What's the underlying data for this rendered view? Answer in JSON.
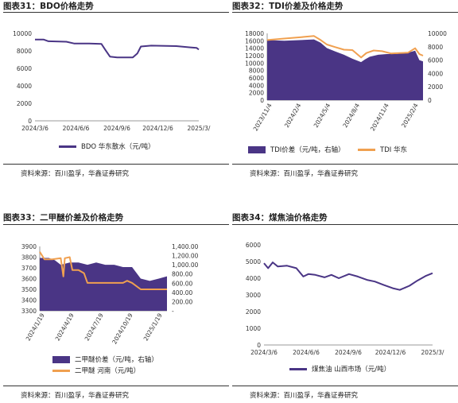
{
  "panels": [
    {
      "title": "图表31：BDO价格走势",
      "source": "资料来源：百川盈孚，华鑫证券研究",
      "chart_data": {
        "type": "line",
        "title": "",
        "xlabel": "",
        "ylabel": "",
        "ylim": [
          0,
          10000
        ],
        "y_ticks": [
          "0",
          "2000",
          "4000",
          "6000",
          "8000",
          "10000"
        ],
        "x_range": [
          "2024-03-06",
          "2025-03-06"
        ],
        "x_tick_labels": [
          "2024/3/6",
          "2024/6/6",
          "2024/9/6",
          "2024/12/6",
          "2025/3/"
        ],
        "series": [
          {
            "name": "BDO 华东散水（元/吨）",
            "color": "#4a3585",
            "points": [
              [
                "2024-03-06",
                9300
              ],
              [
                "2024-03-25",
                9300
              ],
              [
                "2024-04-05",
                9100
              ],
              [
                "2024-05-15",
                9050
              ],
              [
                "2024-06-01",
                8850
              ],
              [
                "2024-07-05",
                8850
              ],
              [
                "2024-08-01",
                8800
              ],
              [
                "2024-08-10",
                8100
              ],
              [
                "2024-08-20",
                7350
              ],
              [
                "2024-09-05",
                7250
              ],
              [
                "2024-10-10",
                7250
              ],
              [
                "2024-10-20",
                7700
              ],
              [
                "2024-10-28",
                8500
              ],
              [
                "2024-11-20",
                8600
              ],
              [
                "2025-01-15",
                8550
              ],
              [
                "2025-02-15",
                8400
              ],
              [
                "2025-03-01",
                8350
              ],
              [
                "2025-03-06",
                8150
              ]
            ]
          }
        ]
      }
    },
    {
      "title": "图表32：TDI价差及价格走势",
      "source": "资料来源：百川盈孚，华鑫证券研究",
      "chart_data": {
        "type": "area",
        "title": "",
        "xlabel": "",
        "ylabel": "",
        "ylim_left": [
          0,
          18000
        ],
        "ylim_right": [
          0,
          10000
        ],
        "y_ticks_left": [
          "0",
          "2000",
          "4000",
          "6000",
          "8000",
          "10000",
          "12000",
          "14000",
          "16000",
          "18000"
        ],
        "y_ticks_right": [
          "0",
          "2000",
          "4000",
          "6000",
          "8000",
          "10000"
        ],
        "x_range": [
          "2023-09-01",
          "2025-03-10"
        ],
        "x_tick_labels": [
          "2023/11/4",
          "2024/2/4",
          "2024/5/4",
          "2024/8/4",
          "2024/11/4",
          "2025/2/4"
        ],
        "series": [
          {
            "name": "TDI价差（元/吨，右轴）",
            "axis": "right",
            "color": "#4a3585",
            "points": [
              [
                "2023-09-01",
                9000
              ],
              [
                "2023-11-01",
                8900
              ],
              [
                "2024-01-01",
                9000
              ],
              [
                "2024-02-15",
                9100
              ],
              [
                "2024-03-10",
                8600
              ],
              [
                "2024-04-01",
                7800
              ],
              [
                "2024-05-01",
                7300
              ],
              [
                "2024-06-01",
                6800
              ],
              [
                "2024-07-01",
                6200
              ],
              [
                "2024-08-01",
                5700
              ],
              [
                "2024-08-15",
                6100
              ],
              [
                "2024-09-01",
                6500
              ],
              [
                "2024-10-01",
                6800
              ],
              [
                "2024-11-01",
                6900
              ],
              [
                "2024-12-01",
                6900
              ],
              [
                "2025-01-15",
                7100
              ],
              [
                "2025-02-10",
                7400
              ],
              [
                "2025-02-25",
                6000
              ],
              [
                "2025-03-10",
                5800
              ]
            ]
          },
          {
            "name": "TDI 华东",
            "axis": "left",
            "color": "#f0a050",
            "type": "line",
            "points": [
              [
                "2023-09-01",
                16200
              ],
              [
                "2023-11-01",
                16600
              ],
              [
                "2024-01-01",
                17000
              ],
              [
                "2024-02-15",
                17300
              ],
              [
                "2024-03-10",
                16200
              ],
              [
                "2024-04-01",
                15000
              ],
              [
                "2024-05-01",
                14300
              ],
              [
                "2024-06-01",
                13600
              ],
              [
                "2024-07-01",
                13500
              ],
              [
                "2024-08-01",
                11500
              ],
              [
                "2024-08-20",
                12700
              ],
              [
                "2024-09-15",
                13400
              ],
              [
                "2024-10-15",
                13200
              ],
              [
                "2024-11-15",
                12600
              ],
              [
                "2024-12-15",
                12700
              ],
              [
                "2025-01-15",
                12800
              ],
              [
                "2025-02-10",
                14000
              ],
              [
                "2025-02-25",
                12400
              ],
              [
                "2025-03-10",
                12000
              ]
            ]
          }
        ]
      }
    },
    {
      "title": "图表33：二甲醚价差及价格走势",
      "source": "资料来源：百川盈孚，华鑫证券研究",
      "chart_data": {
        "type": "area",
        "title": "",
        "xlabel": "",
        "ylabel": "",
        "ylim_left": [
          3300,
          3900
        ],
        "ylim_right": [
          0,
          1400
        ],
        "y_ticks_left": [
          "3300",
          "3400",
          "3500",
          "3600",
          "3700",
          "3800",
          "3900"
        ],
        "y_ticks_right": [
          "-",
          "200.00",
          "400.00",
          "600.00",
          "800.00",
          "1,000.00",
          "1,200.00",
          "1,400.00"
        ],
        "x_range": [
          "2023-12-20",
          "2025-03-01"
        ],
        "x_tick_labels": [
          "2024/1/19",
          "2024/4/19",
          "2024/7/19",
          "2024/10/19",
          "2025/1/19"
        ],
        "series": [
          {
            "name": "二甲醚价差（元/吨，右轴）",
            "axis": "right",
            "color": "#4a3585",
            "points": [
              [
                "2023-12-20",
                1150
              ],
              [
                "2024-01-20",
                1150
              ],
              [
                "2024-02-10",
                1100
              ],
              [
                "2024-03-01",
                1000
              ],
              [
                "2024-04-01",
                1050
              ],
              [
                "2024-05-01",
                1050
              ],
              [
                "2024-06-01",
                1000
              ],
              [
                "2024-07-01",
                1050
              ],
              [
                "2024-08-01",
                1000
              ],
              [
                "2024-09-01",
                1000
              ],
              [
                "2024-10-01",
                950
              ],
              [
                "2024-11-01",
                950
              ],
              [
                "2024-12-01",
                700
              ],
              [
                "2025-01-01",
                650
              ],
              [
                "2025-02-01",
                700
              ],
              [
                "2025-03-01",
                750
              ]
            ]
          },
          {
            "name": "二甲醚 河南（元/吨）",
            "axis": "left",
            "color": "#f0a050",
            "type": "line",
            "points": [
              [
                "2023-12-20",
                3850
              ],
              [
                "2024-01-05",
                3780
              ],
              [
                "2024-02-01",
                3780
              ],
              [
                "2024-03-01",
                3790
              ],
              [
                "2024-03-10",
                3620
              ],
              [
                "2024-03-15",
                3790
              ],
              [
                "2024-04-01",
                3800
              ],
              [
                "2024-04-10",
                3680
              ],
              [
                "2024-05-01",
                3680
              ],
              [
                "2024-05-20",
                3650
              ],
              [
                "2024-06-01",
                3560
              ],
              [
                "2024-10-01",
                3560
              ],
              [
                "2024-10-15",
                3580
              ],
              [
                "2024-11-01",
                3560
              ],
              [
                "2024-12-01",
                3500
              ],
              [
                "2025-03-01",
                3500
              ]
            ]
          }
        ]
      }
    },
    {
      "title": "图表34：煤焦油价格走势",
      "source": "资料来源：百川盈孚，华鑫证券研究",
      "chart_data": {
        "type": "line",
        "title": "",
        "xlabel": "",
        "ylabel": "",
        "ylim": [
          0,
          6000
        ],
        "y_ticks": [
          "0",
          "1000",
          "2000",
          "3000",
          "4000",
          "5000",
          "6000"
        ],
        "x_range": [
          "2024-03-06",
          "2025-03-06"
        ],
        "x_tick_labels": [
          "2024/3/6",
          "2024/6/6",
          "2024/9/6",
          "2024/12/6",
          "2025/3/"
        ],
        "series": [
          {
            "name": "煤焦油 山西市场（元/吨）",
            "color": "#4a3585",
            "points": [
              [
                "2024-03-06",
                4900
              ],
              [
                "2024-03-15",
                4600
              ],
              [
                "2024-03-25",
                4950
              ],
              [
                "2024-04-05",
                4700
              ],
              [
                "2024-04-25",
                4750
              ],
              [
                "2024-05-15",
                4600
              ],
              [
                "2024-05-30",
                4100
              ],
              [
                "2024-06-10",
                4250
              ],
              [
                "2024-06-25",
                4200
              ],
              [
                "2024-07-15",
                4050
              ],
              [
                "2024-07-30",
                4200
              ],
              [
                "2024-08-15",
                4000
              ],
              [
                "2024-09-06",
                4250
              ],
              [
                "2024-09-25",
                4100
              ],
              [
                "2024-10-15",
                3900
              ],
              [
                "2024-11-01",
                3800
              ],
              [
                "2024-11-20",
                3600
              ],
              [
                "2024-12-10",
                3400
              ],
              [
                "2024-12-25",
                3300
              ],
              [
                "2025-01-15",
                3550
              ],
              [
                "2025-02-01",
                3850
              ],
              [
                "2025-02-20",
                4150
              ],
              [
                "2025-03-06",
                4300
              ]
            ]
          }
        ]
      }
    }
  ]
}
